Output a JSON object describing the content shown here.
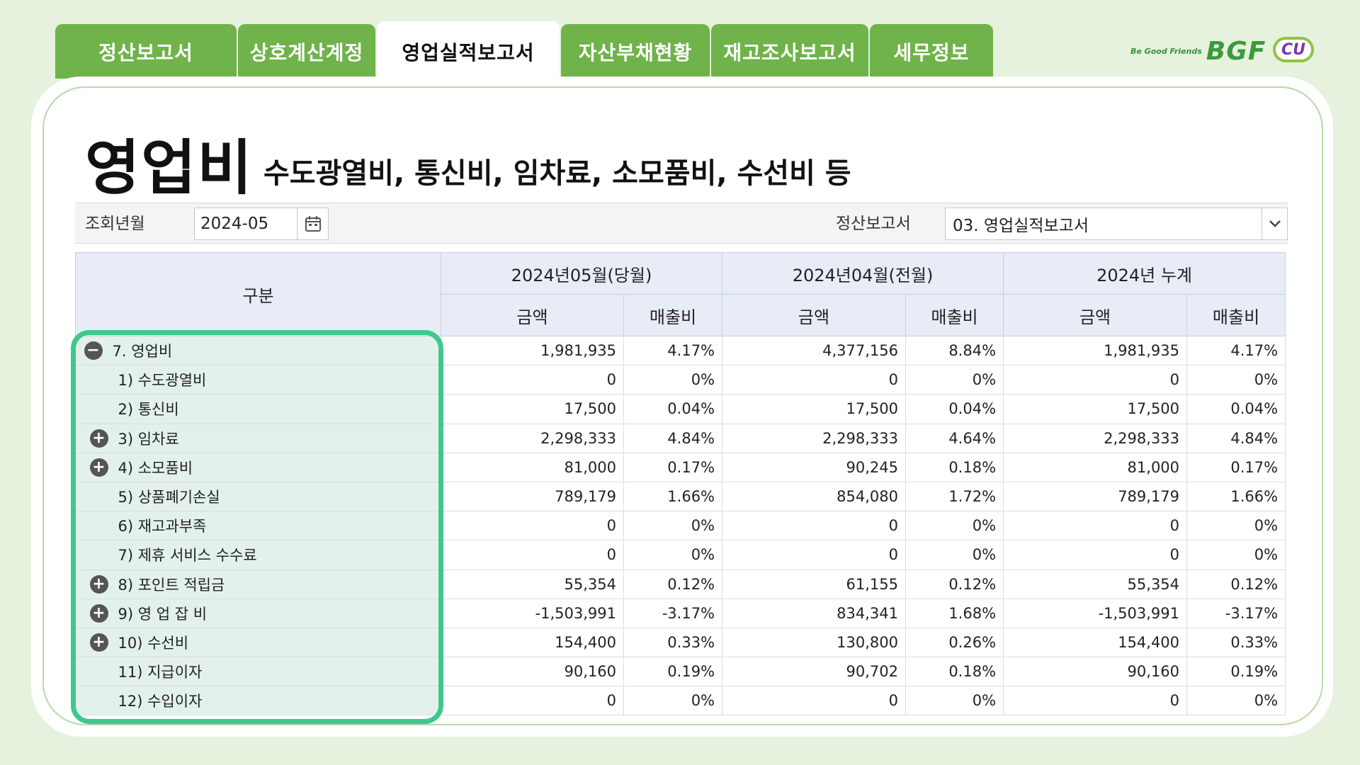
{
  "tabs": [
    {
      "label": "정산보고서",
      "active": false
    },
    {
      "label": "상호계산계정",
      "active": false
    },
    {
      "label": "영업실적보고서",
      "active": true
    },
    {
      "label": "자산부채현황",
      "active": false
    },
    {
      "label": "재고조사보고서",
      "active": false
    },
    {
      "label": "세무정보",
      "active": false
    }
  ],
  "logo": {
    "small": "Be Good Friends",
    "bgf": "BGF",
    "cu": "CU"
  },
  "title": {
    "main": "영업비",
    "sub": "수도광열비, 통신비, 임차료, 소모품비, 수선비 등"
  },
  "filter": {
    "period_label": "조회년월",
    "period_value": "2024-05",
    "report_label": "정산보고서",
    "report_value": "03.  영업실적보고서"
  },
  "table": {
    "rowhead": "구분",
    "groups": [
      "2024년05월(당월)",
      "2024년04월(전월)",
      "2024년 누계"
    ],
    "sub": [
      "금액",
      "매출비"
    ],
    "rows": [
      {
        "label": "7. 영업비",
        "toggle": "−",
        "level": 0,
        "v": [
          "1,981,935",
          "4.17%",
          "4,377,156",
          "8.84%",
          "1,981,935",
          "4.17%"
        ]
      },
      {
        "label": "1) 수도광열비",
        "toggle": "",
        "level": 1,
        "v": [
          "0",
          "0%",
          "0",
          "0%",
          "0",
          "0%"
        ]
      },
      {
        "label": "2) 통신비",
        "toggle": "",
        "level": 1,
        "v": [
          "17,500",
          "0.04%",
          "17,500",
          "0.04%",
          "17,500",
          "0.04%"
        ]
      },
      {
        "label": "3) 임차료",
        "toggle": "+",
        "level": 1,
        "v": [
          "2,298,333",
          "4.84%",
          "2,298,333",
          "4.64%",
          "2,298,333",
          "4.84%"
        ]
      },
      {
        "label": "4) 소모품비",
        "toggle": "+",
        "level": 1,
        "v": [
          "81,000",
          "0.17%",
          "90,245",
          "0.18%",
          "81,000",
          "0.17%"
        ]
      },
      {
        "label": "5) 상품폐기손실",
        "toggle": "",
        "level": 1,
        "v": [
          "789,179",
          "1.66%",
          "854,080",
          "1.72%",
          "789,179",
          "1.66%"
        ]
      },
      {
        "label": "6) 재고과부족",
        "toggle": "",
        "level": 1,
        "v": [
          "0",
          "0%",
          "0",
          "0%",
          "0",
          "0%"
        ]
      },
      {
        "label": "7) 제휴 서비스 수수료",
        "toggle": "",
        "level": 1,
        "v": [
          "0",
          "0%",
          "0",
          "0%",
          "0",
          "0%"
        ]
      },
      {
        "label": "8) 포인트 적립금",
        "toggle": "+",
        "level": 1,
        "v": [
          "55,354",
          "0.12%",
          "61,155",
          "0.12%",
          "55,354",
          "0.12%"
        ]
      },
      {
        "label": "9) 영 업 잡 비",
        "toggle": "+",
        "level": 1,
        "v": [
          "-1,503,991",
          "-3.17%",
          "834,341",
          "1.68%",
          "-1,503,991",
          "-3.17%"
        ]
      },
      {
        "label": "10)  수선비",
        "toggle": "+",
        "level": 1,
        "v": [
          "154,400",
          "0.33%",
          "130,800",
          "0.26%",
          "154,400",
          "0.33%"
        ]
      },
      {
        "label": "11) 지급이자",
        "toggle": "",
        "level": 1,
        "v": [
          "90,160",
          "0.19%",
          "90,702",
          "0.18%",
          "90,160",
          "0.19%"
        ]
      },
      {
        "label": "12) 수입이자",
        "toggle": "",
        "level": 1,
        "v": [
          "0",
          "0%",
          "0",
          "0%",
          "0",
          "0%"
        ]
      }
    ]
  },
  "colors": {
    "tab": "#6fb34a",
    "highlight": "#3fc88d",
    "background": "#e6f1de"
  }
}
